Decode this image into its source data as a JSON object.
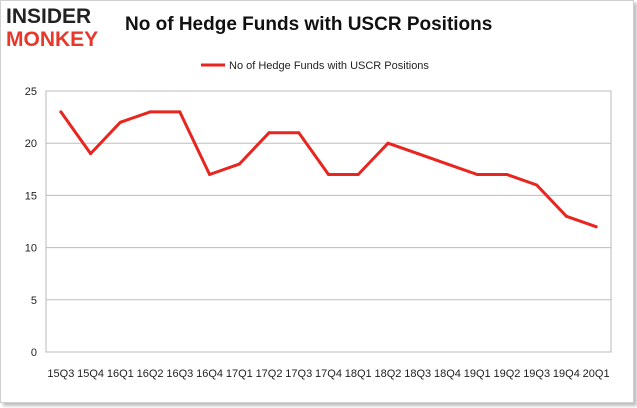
{
  "logo": {
    "line1": "INSIDER",
    "line2": "MONKEY"
  },
  "chart_data": {
    "type": "line",
    "title": "No of Hedge Funds with USCR Positions",
    "categories": [
      "2015Q3",
      "2015Q4",
      "2016Q1",
      "2016Q2",
      "2016Q3",
      "2016Q4",
      "2017Q1",
      "2017Q2",
      "2017Q3",
      "2017Q4",
      "2018Q1",
      "2018Q2",
      "2018Q3",
      "2018Q4",
      "2019Q1",
      "2019Q2",
      "2019Q3",
      "2019Q4",
      "2020Q1"
    ],
    "tick_labels": [
      "15Q3",
      "15Q4",
      "16Q1",
      "16Q2",
      "16Q3",
      "16Q4",
      "17Q1",
      "17Q2",
      "17Q3",
      "17Q4",
      "18Q1",
      "18Q2",
      "18Q3",
      "18Q4",
      "19Q1",
      "19Q2",
      "19Q3",
      "19Q4",
      "20Q1"
    ],
    "series": [
      {
        "name": "No of Hedge Funds with USCR Positions",
        "values": [
          23,
          19,
          22,
          23,
          23,
          17,
          18,
          21,
          21,
          17,
          17,
          20,
          19,
          18,
          17,
          17,
          16,
          13,
          12
        ],
        "color": "#e8251f"
      }
    ],
    "ylim": [
      0,
      25
    ],
    "yticks": [
      0,
      5,
      10,
      15,
      20,
      25
    ],
    "grid": true,
    "legend": "top-center",
    "xlabel": "",
    "ylabel": ""
  }
}
